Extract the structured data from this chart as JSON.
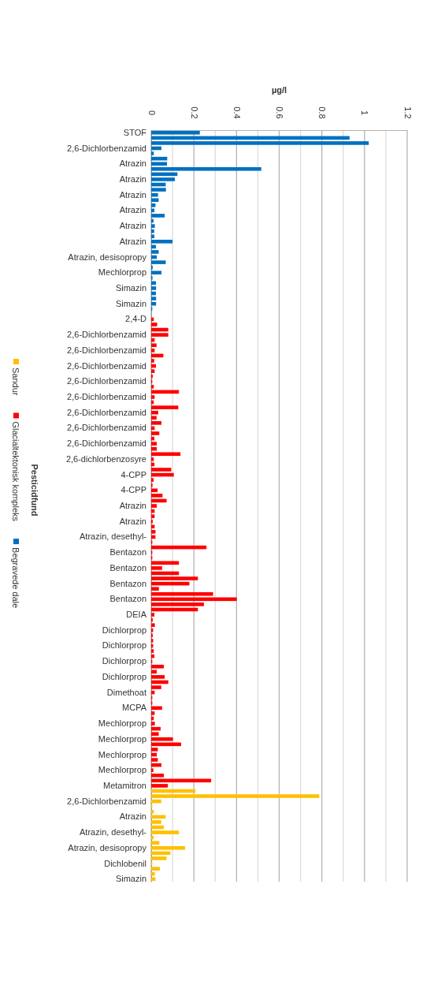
{
  "chart_data": {
    "type": "bar",
    "orientation": "horizontal",
    "stacked": true,
    "xlabel": "µg/l",
    "ylabel": "Pesticidfund",
    "xlim": [
      0,
      1.2
    ],
    "xticks": [
      0,
      {
        "value": 0.1,
        "label": null
      },
      0.2,
      {
        "value": 0.3,
        "label": null
      },
      0.4,
      {
        "value": 0.5,
        "label": null
      },
      0.6,
      {
        "value": 0.7,
        "label": null
      },
      0.8,
      {
        "value": 0.9,
        "label": null
      },
      1,
      {
        "value": 1.1,
        "label": null
      },
      1.2
    ],
    "grid": "x",
    "legend": "left",
    "categories": [
      "STOF",
      null,
      null,
      "2,6-Dichlorbenzamid",
      null,
      null,
      "Atrazin",
      null,
      null,
      "Atrazin",
      null,
      null,
      "Atrazin",
      null,
      null,
      "Atrazin",
      null,
      null,
      "Atrazin",
      null,
      null,
      "Atrazin",
      null,
      null,
      "Atrazin, desisopropy",
      null,
      null,
      "Mechlorprop",
      null,
      null,
      "Simazin",
      null,
      null,
      "Simazin",
      null,
      null,
      "2,4-D",
      null,
      null,
      "2,6-Dichlorbenzamid",
      null,
      null,
      "2,6-Dichlorbenzamid",
      null,
      null,
      "2,6-Dichlorbenzamid",
      null,
      null,
      "2,6-Dichlorbenzamid",
      null,
      null,
      "2,6-Dichlorbenzamid",
      null,
      null,
      "2,6-Dichlorbenzamid",
      null,
      null,
      "2,6-Dichlorbenzamid",
      null,
      null,
      "2,6-Dichlorbenzamid",
      null,
      null,
      "2,6-dichlorbenzosyre",
      null,
      null,
      "4-CPP",
      null,
      null,
      "4-CPP",
      null,
      null,
      "Atrazin",
      null,
      null,
      "Atrazin",
      null,
      null,
      "Atrazin, desethyl-",
      null,
      null,
      "Bentazon",
      null,
      null,
      "Bentazon",
      null,
      null,
      "Bentazon",
      null,
      null,
      "Bentazon",
      null,
      null,
      "DEIA",
      null,
      null,
      "Dichlorprop",
      null,
      null,
      "Dichlorprop",
      null,
      null,
      "Dichlorprop",
      null,
      null,
      "Dichlorprop",
      null,
      null,
      "Dimethoat",
      null,
      null,
      "MCPA",
      null,
      null,
      "Mechlorprop",
      null,
      null,
      "Mechlorprop",
      null,
      null,
      "Mechlorprop",
      null,
      null,
      "Mechlorprop",
      null,
      null,
      "Metamitron",
      null,
      null,
      "2,6-Dichlorbenzamid",
      null,
      null,
      "Atrazin",
      null,
      null,
      "Atrazin, desethyl-",
      null,
      null,
      "Atrazin, desisopropy",
      null,
      null,
      "Dichlobenil",
      null,
      null,
      "Simazin"
    ],
    "series": [
      {
        "name": "Begravede dale",
        "color": "#0070c0",
        "values": [
          0.228,
          0.93,
          1.02,
          0.048,
          0.012,
          0.075,
          0.074,
          0.516,
          0.123,
          0.111,
          0.068,
          0.069,
          0.032,
          0.035,
          0.02,
          0.015,
          0.063,
          0.011,
          0.017,
          0.014,
          0.015,
          0.1,
          0.022,
          0.035,
          0.026,
          0.068,
          0.007,
          0.048,
          0.006,
          0.022,
          0.023,
          0.022,
          0.023,
          0.023,
          0.005,
          null,
          null,
          null,
          null,
          null,
          null,
          null,
          null,
          null,
          null,
          null,
          null,
          null,
          null,
          null,
          null,
          null,
          null,
          null,
          null,
          null,
          null,
          null,
          null,
          null,
          null,
          null,
          null,
          null,
          null,
          null,
          null,
          null,
          null,
          null,
          null,
          null,
          null,
          null,
          null,
          null,
          null,
          null,
          null,
          null,
          null,
          null,
          null,
          null,
          null,
          null,
          null,
          null,
          null,
          null,
          null,
          null,
          null,
          null,
          null,
          null,
          null,
          null,
          null,
          null,
          null,
          null,
          null,
          null,
          null,
          null,
          null,
          null,
          null,
          null,
          null,
          null,
          null,
          null,
          null,
          null,
          null,
          null,
          null,
          null,
          null,
          null,
          null,
          null,
          null,
          null,
          null,
          null,
          null,
          null,
          null,
          null,
          null,
          null,
          null,
          null,
          null,
          null,
          null,
          null,
          null,
          null,
          null,
          null,
          null
        ]
      },
      {
        "name": "Glacialtektonisk kompleks",
        "color": "#ff0000",
        "values": [
          null,
          null,
          null,
          null,
          null,
          null,
          null,
          null,
          null,
          null,
          null,
          null,
          null,
          null,
          null,
          null,
          null,
          null,
          null,
          null,
          null,
          null,
          null,
          null,
          null,
          null,
          null,
          null,
          null,
          null,
          null,
          null,
          null,
          null,
          null,
          null,
          0.012,
          0.028,
          0.08,
          0.08,
          0.016,
          0.025,
          0.016,
          0.057,
          0.014,
          0.022,
          0.016,
          0.007,
          0.005,
          0.012,
          0.13,
          0.016,
          0.012,
          0.127,
          0.033,
          0.025,
          0.048,
          0.016,
          0.038,
          0.015,
          0.026,
          0.026,
          0.137,
          0.012,
          0.015,
          0.094,
          0.106,
          0.011,
          0.006,
          0.03,
          0.053,
          0.072,
          0.026,
          0.016,
          0.016,
          0.007,
          0.016,
          0.02,
          0.02,
          0.005,
          0.259,
          0.005,
          0.005,
          0.13,
          0.051,
          0.13,
          0.219,
          0.179,
          0.036,
          0.29,
          0.401,
          0.247,
          0.219,
          0.015,
          0.007,
          0.017,
          0.009,
          0.007,
          0.009,
          0.009,
          0.012,
          0.015,
          0.005,
          0.059,
          0.026,
          0.063,
          0.08,
          0.047,
          0.016,
          0.005,
          0.005,
          0.051,
          0.016,
          0.012,
          0.017,
          0.044,
          0.035,
          0.102,
          0.14,
          0.031,
          0.026,
          0.031,
          0.048,
          0.01,
          0.059,
          0.281,
          0.078,
          null,
          null,
          null,
          null,
          null,
          null,
          null,
          null,
          null,
          null,
          null,
          null,
          null,
          null,
          null,
          null,
          null,
          null
        ]
      },
      {
        "name": "Sandur",
        "color": "#ffc000",
        "values": [
          null,
          null,
          null,
          null,
          null,
          null,
          null,
          null,
          null,
          null,
          null,
          null,
          null,
          null,
          null,
          null,
          null,
          null,
          null,
          null,
          null,
          null,
          null,
          null,
          null,
          null,
          null,
          null,
          null,
          null,
          null,
          null,
          null,
          null,
          null,
          null,
          null,
          null,
          null,
          null,
          null,
          null,
          null,
          null,
          null,
          null,
          null,
          null,
          null,
          null,
          null,
          null,
          null,
          null,
          null,
          null,
          null,
          null,
          null,
          null,
          null,
          null,
          null,
          null,
          null,
          null,
          null,
          null,
          null,
          null,
          null,
          null,
          null,
          null,
          null,
          null,
          null,
          null,
          null,
          null,
          null,
          null,
          null,
          null,
          null,
          null,
          null,
          null,
          null,
          null,
          null,
          null,
          null,
          null,
          null,
          null,
          null,
          null,
          null,
          null,
          null,
          null,
          null,
          null,
          null,
          null,
          null,
          null,
          null,
          null,
          null,
          null,
          null,
          null,
          null,
          null,
          null,
          null,
          null,
          null,
          null,
          null,
          null,
          null,
          null,
          null,
          null,
          0.207,
          0.788,
          0.047,
          0.005,
          0.012,
          0.068,
          0.047,
          0.059,
          0.13,
          0.011,
          0.038,
          0.159,
          0.09,
          0.072,
          0.005,
          0.041,
          0.017,
          0.02
        ]
      }
    ]
  }
}
